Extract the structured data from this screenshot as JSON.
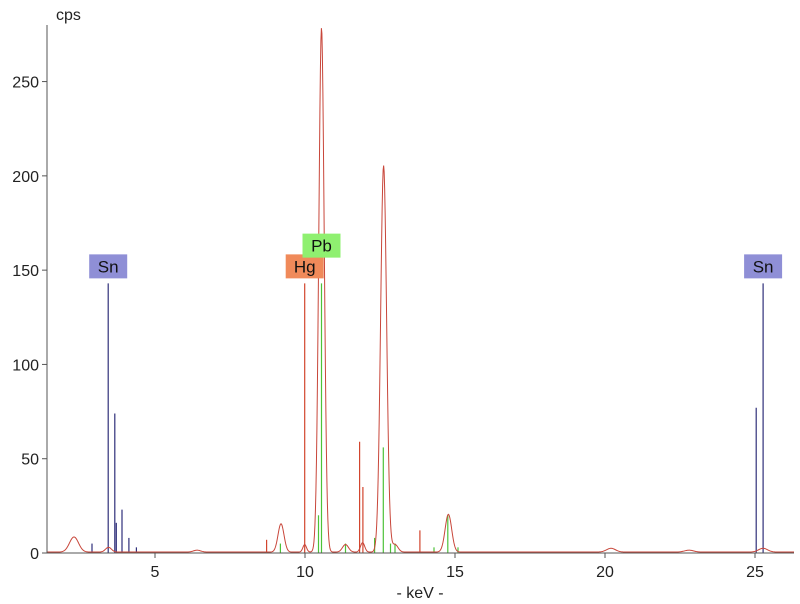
{
  "chart_data": {
    "type": "line",
    "title": "",
    "xlabel": "- keV -",
    "ylabel": "cps",
    "xlim": [
      1.4,
      26.3
    ],
    "ylim": [
      0,
      280
    ],
    "x_ticks": [
      5,
      10,
      15,
      20,
      25
    ],
    "y_ticks": [
      0,
      50,
      100,
      150,
      200,
      250
    ],
    "grid": false,
    "colors": {
      "spectrum": "#c8463a",
      "Sn": "#2f2f7a",
      "Hg": "#d2452e",
      "Pb": "#4cc238",
      "Sn_label_bg": "#8f8fd6",
      "Hg_label_bg": "#f08a5a",
      "Pb_label_bg": "#8ff070",
      "axis": "#555555",
      "plot_bg": "#ffffff"
    },
    "spectrum": {
      "name": "",
      "baseline": 0.5,
      "peaks": [
        [
          2.3,
          8,
          0.15
        ],
        [
          3.45,
          2.5,
          0.1
        ],
        [
          6.4,
          1,
          0.12
        ],
        [
          9.2,
          15,
          0.1
        ],
        [
          9.99,
          4,
          0.06
        ],
        [
          10.55,
          278,
          0.09
        ],
        [
          11.35,
          4,
          0.1
        ],
        [
          11.92,
          5,
          0.07
        ],
        [
          12.62,
          205,
          0.1
        ],
        [
          13.0,
          4,
          0.1
        ],
        [
          14.78,
          20,
          0.11
        ],
        [
          20.2,
          2,
          0.15
        ],
        [
          22.8,
          1,
          0.15
        ],
        [
          25.27,
          2,
          0.15
        ]
      ]
    },
    "element_lines": [
      {
        "element": "Sn",
        "label": "Sn",
        "label_energy": 3.44,
        "label_cps": 152,
        "lines": [
          [
            3.44,
            143
          ],
          [
            3.66,
            74
          ],
          [
            3.71,
            16
          ],
          [
            3.9,
            23
          ],
          [
            4.13,
            8
          ],
          [
            4.38,
            3
          ],
          [
            2.9,
            5
          ],
          [
            25.04,
            77
          ],
          [
            25.27,
            143
          ]
        ]
      },
      {
        "element": "Hg",
        "label": "Hg",
        "label_energy": 9.99,
        "label_cps": 152,
        "lines": [
          [
            9.99,
            143
          ],
          [
            8.72,
            7
          ],
          [
            11.82,
            59
          ],
          [
            11.93,
            35
          ],
          [
            13.83,
            12
          ]
        ]
      },
      {
        "element": "Pb",
        "label": "Pb",
        "label_energy": 10.55,
        "label_cps": 163,
        "lines": [
          [
            10.55,
            143
          ],
          [
            12.61,
            56
          ],
          [
            9.18,
            5
          ],
          [
            12.32,
            8
          ],
          [
            13.0,
            5
          ],
          [
            14.76,
            20
          ],
          [
            11.35,
            5
          ],
          [
            12.85,
            5
          ],
          [
            14.3,
            3
          ],
          [
            15.1,
            3
          ],
          [
            10.45,
            20
          ]
        ]
      }
    ]
  }
}
